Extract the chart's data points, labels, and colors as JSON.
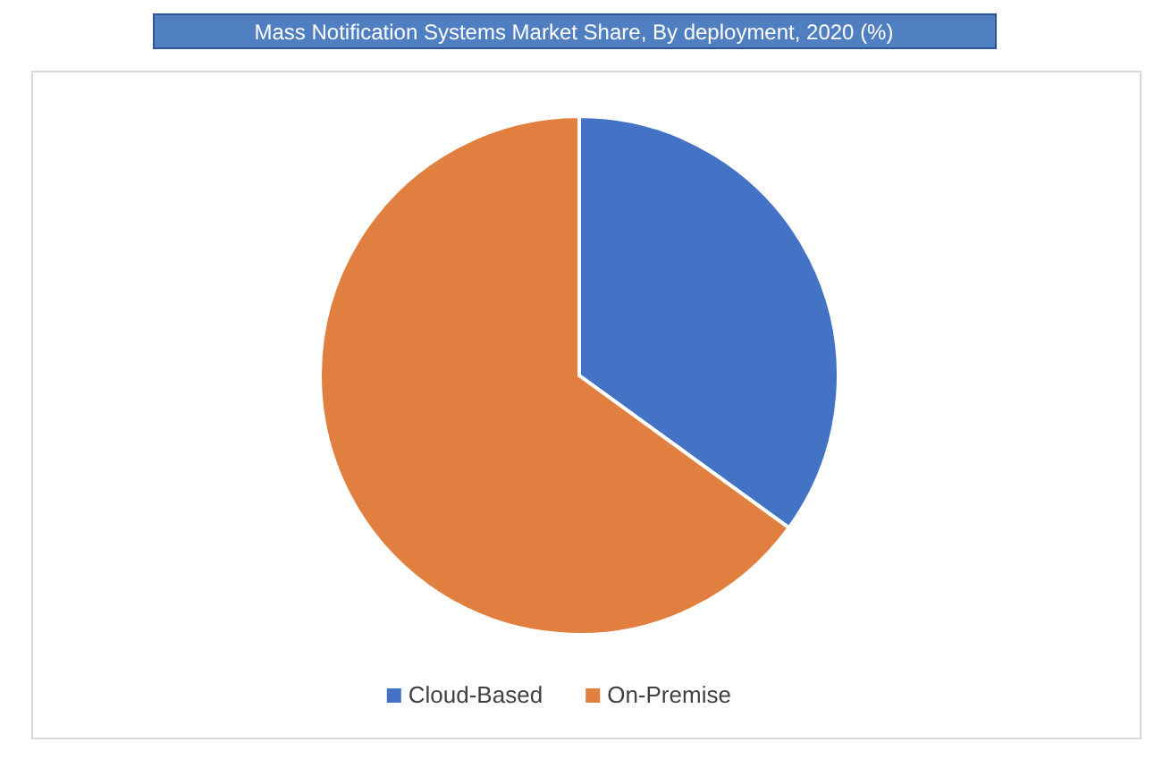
{
  "chart_data": {
    "type": "pie",
    "title": "Mass Notification Systems Market Share, By deployment, 2020 (%)",
    "categories": [
      "Cloud-Based",
      "On-Premise"
    ],
    "values": [
      35,
      65
    ],
    "colors": [
      "#4472c4",
      "#e07f3f"
    ],
    "legend": "bottom"
  }
}
